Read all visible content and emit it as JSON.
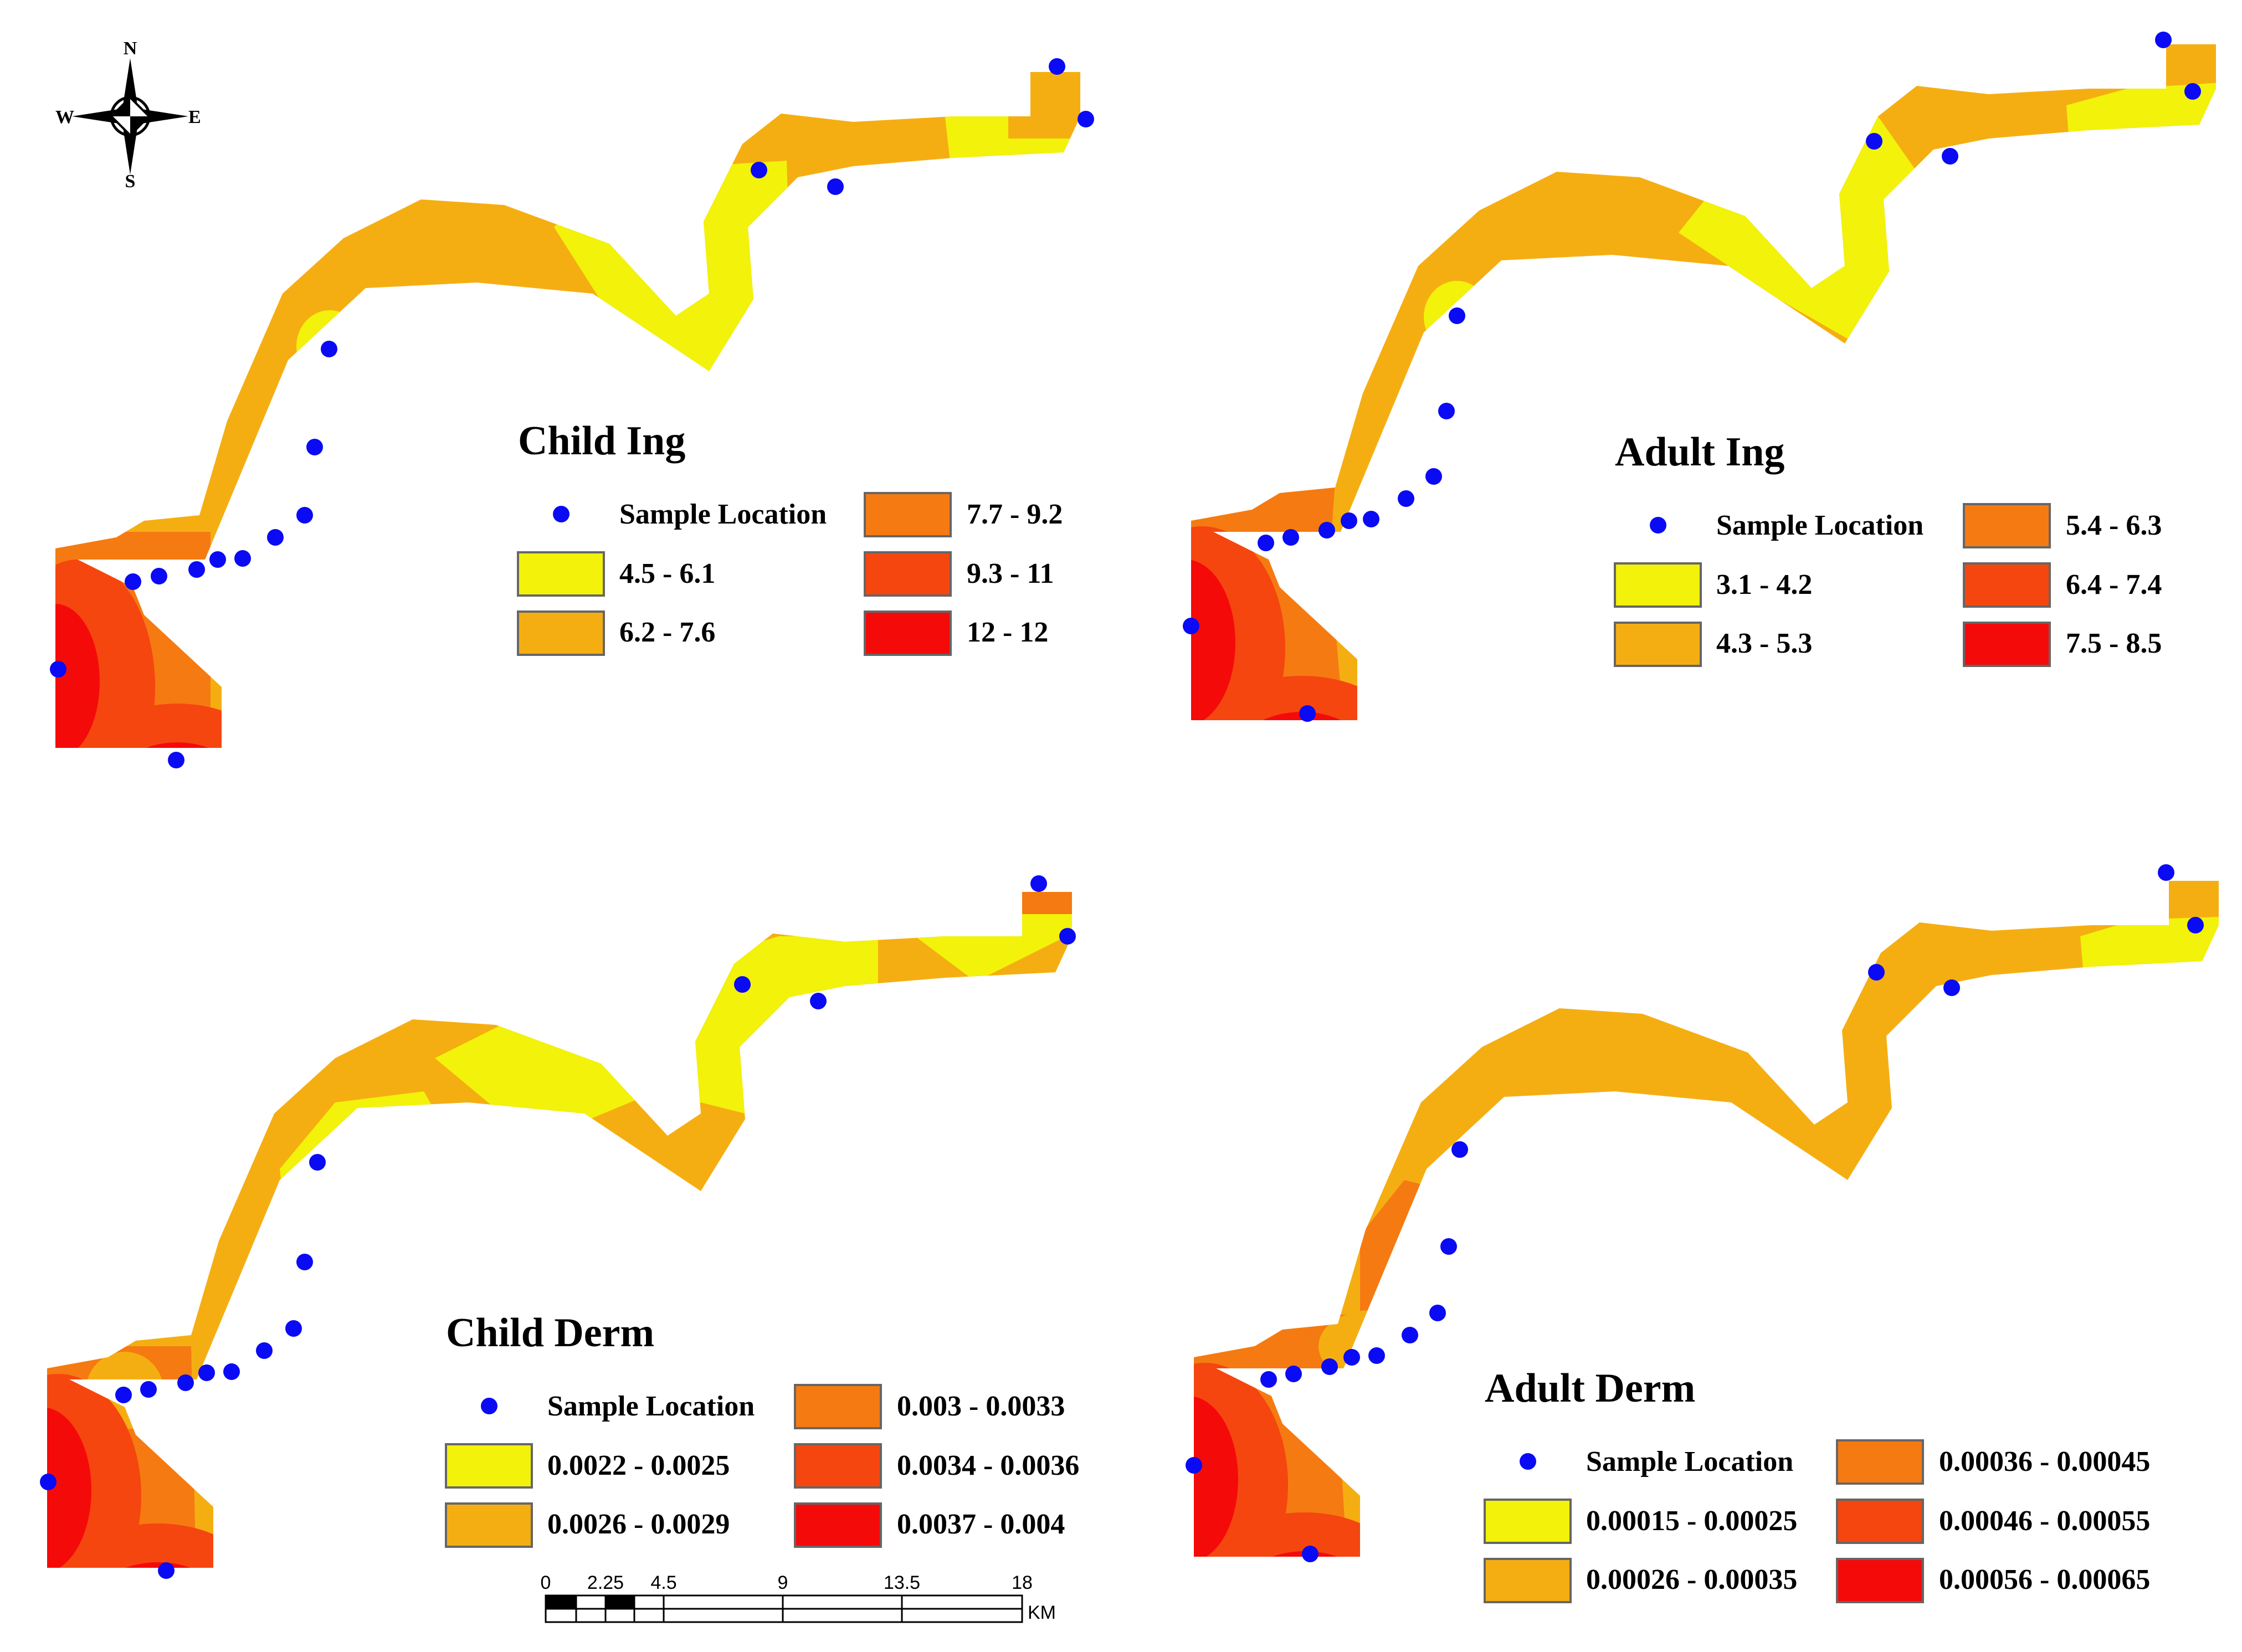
{
  "compass": {
    "north": "N",
    "south": "S",
    "east": "E",
    "west": "W"
  },
  "colors": {
    "class1": "#f2f20a",
    "class2": "#f5ae12",
    "class3": "#f57a12",
    "class4": "#f5460f",
    "class5": "#f50a0a",
    "sample_point": "#0a0af5"
  },
  "panels": [
    {
      "title": "Child Ing",
      "sample_label": "Sample Location",
      "classes": [
        "4.5 - 6.1",
        "6.2 - 7.6",
        "7.7 - 9.2",
        "9.3 - 11",
        "12 - 12"
      ]
    },
    {
      "title": "Adult Ing",
      "sample_label": "Sample Location",
      "classes": [
        "3.1 - 4.2",
        "4.3 - 5.3",
        "5.4 - 6.3",
        "6.4 - 7.4",
        "7.5 - 8.5"
      ]
    },
    {
      "title": "Child Derm",
      "sample_label": "Sample Location",
      "classes": [
        "0.0022 - 0.0025",
        "0.0026 - 0.0029",
        "0.003 - 0.0033",
        "0.0034 - 0.0036",
        "0.0037 - 0.004"
      ]
    },
    {
      "title": "Adult Derm",
      "sample_label": "Sample Location",
      "classes": [
        "0.00015 - 0.00025",
        "0.00026 - 0.00035",
        "0.00036 - 0.00045",
        "0.00046 - 0.00055",
        "0.00056 - 0.00065"
      ]
    }
  ],
  "scale_bar": {
    "ticks": [
      "0",
      "2.25",
      "4.5",
      "9",
      "13.5",
      "18"
    ],
    "unit": "KM"
  }
}
